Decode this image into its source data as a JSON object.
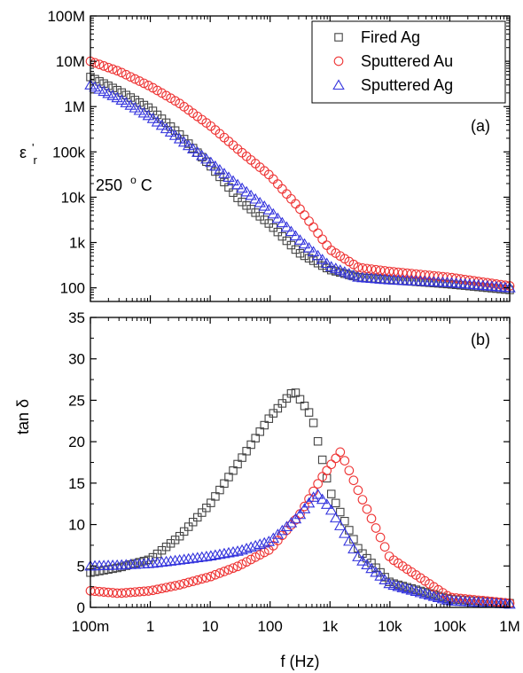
{
  "chart_data": [
    {
      "panel_label": "(a)",
      "type": "scatter",
      "y_scale": "log",
      "ylim": [
        50,
        100000000
      ],
      "ylabel": "ε'r",
      "ylabel_main": "ε",
      "ylabel_sup": "'",
      "ylabel_sub": "r",
      "y_ticks": [
        {
          "value": 100,
          "label": "100"
        },
        {
          "value": 1000,
          "label": "1k"
        },
        {
          "value": 10000,
          "label": "10k"
        },
        {
          "value": 100000,
          "label": "100k"
        },
        {
          "value": 1000000,
          "label": "1M"
        },
        {
          "value": 10000000,
          "label": "10M"
        },
        {
          "value": 100000000,
          "label": "100M"
        }
      ],
      "annotation": {
        "value": "250",
        "sup": "o",
        "unit": "C"
      },
      "series": [
        {
          "name": "Fired Ag",
          "marker": "square",
          "color": "#444444",
          "x": [
            0.1,
            0.3,
            1,
            3,
            10,
            30,
            100,
            300,
            1000,
            3000,
            10000,
            100000,
            1000000
          ],
          "y": [
            4500000,
            2200000,
            900000,
            250000,
            50000,
            9000,
            2500,
            600,
            250,
            170,
            150,
            120,
            90
          ]
        },
        {
          "name": "Sputtered Au",
          "marker": "circle",
          "color": "#ee3333",
          "x": [
            0.1,
            0.3,
            1,
            3,
            10,
            30,
            100,
            300,
            1000,
            3000,
            10000,
            100000,
            1000000
          ],
          "y": [
            10000000,
            6000000,
            2800000,
            1200000,
            380000,
            110000,
            30000,
            6000,
            700,
            280,
            230,
            170,
            110
          ]
        },
        {
          "name": "Sputtered Ag",
          "marker": "triangle",
          "color": "#3333dd",
          "x": [
            0.1,
            0.3,
            1,
            3,
            10,
            30,
            100,
            300,
            1000,
            3000,
            10000,
            100000,
            1000000
          ],
          "y": [
            3000000,
            1500000,
            600000,
            200000,
            60000,
            18000,
            5000,
            1200,
            300,
            170,
            150,
            130,
            100
          ]
        }
      ],
      "legend": {
        "placement": "top-right"
      }
    },
    {
      "panel_label": "(b)",
      "type": "scatter",
      "y_scale": "linear",
      "ylim": [
        0,
        35
      ],
      "ylabel": "tan δ",
      "y_ticks": [
        {
          "value": 0,
          "label": "0"
        },
        {
          "value": 5,
          "label": "5"
        },
        {
          "value": 10,
          "label": "10"
        },
        {
          "value": 15,
          "label": "15"
        },
        {
          "value": 20,
          "label": "20"
        },
        {
          "value": 25,
          "label": "25"
        },
        {
          "value": 30,
          "label": "30"
        },
        {
          "value": 35,
          "label": "35"
        }
      ],
      "series": [
        {
          "name": "Fired Ag",
          "marker": "square",
          "color": "#444444",
          "x": [
            0.1,
            0.3,
            1,
            3,
            10,
            30,
            100,
            250,
            500,
            1000,
            3000,
            10000,
            100000,
            1000000
          ],
          "y": [
            4.2,
            4.8,
            5.8,
            8.5,
            12.5,
            17.5,
            23,
            26.2,
            23,
            14,
            7,
            3,
            1,
            0.5
          ]
        },
        {
          "name": "Sputtered Au",
          "marker": "circle",
          "color": "#ee3333",
          "x": [
            0.1,
            0.3,
            1,
            3,
            10,
            30,
            100,
            300,
            700,
            1500,
            3000,
            10000,
            100000,
            1000000
          ],
          "y": [
            2,
            1.7,
            2,
            2.7,
            3.7,
            5,
            7,
            11,
            15.5,
            18.8,
            14,
            6,
            1.2,
            0.5
          ]
        },
        {
          "name": "Sputtered Ag",
          "marker": "triangle",
          "color": "#3333dd",
          "x": [
            0.1,
            0.3,
            1,
            3,
            10,
            30,
            100,
            300,
            600,
            1000,
            3000,
            10000,
            100000,
            1000000
          ],
          "y": [
            5,
            5.1,
            5.3,
            5.7,
            6.2,
            6.8,
            8,
            11,
            13.8,
            12,
            6,
            2.8,
            0.8,
            0.4
          ]
        }
      ]
    }
  ],
  "x_axis": {
    "scale": "log",
    "xlim": [
      0.1,
      1000000
    ],
    "xlabel": "f (Hz)",
    "ticks": [
      {
        "value": 0.1,
        "label": "100m"
      },
      {
        "value": 1,
        "label": "1"
      },
      {
        "value": 10,
        "label": "10"
      },
      {
        "value": 100,
        "label": "100"
      },
      {
        "value": 1000,
        "label": "1k"
      },
      {
        "value": 10000,
        "label": "10k"
      },
      {
        "value": 100000,
        "label": "100k"
      },
      {
        "value": 1000000,
        "label": "1M"
      }
    ]
  }
}
